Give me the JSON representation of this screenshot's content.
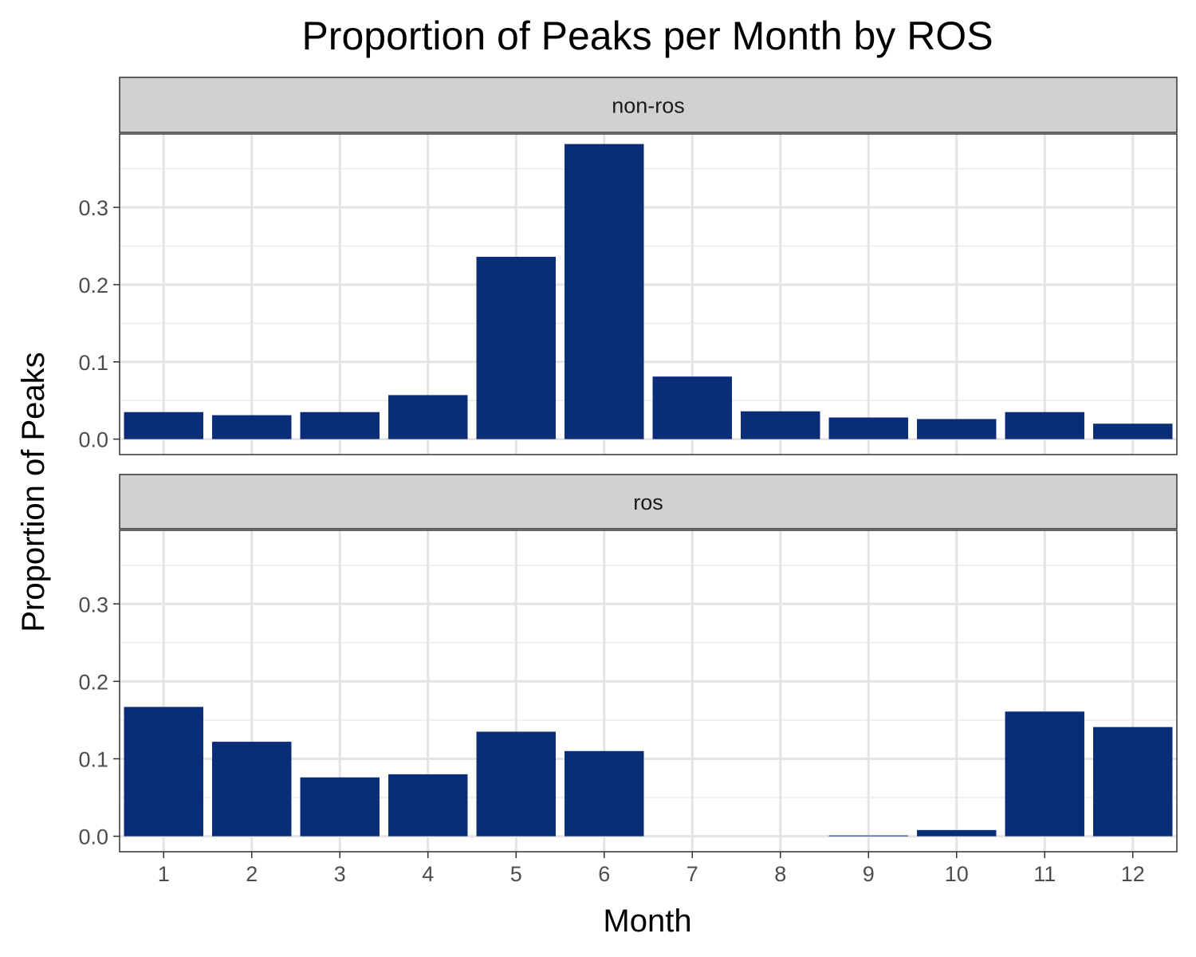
{
  "chart_data": {
    "type": "bar",
    "title": "Proportion of Peaks per Month by ROS",
    "xlabel": "Month",
    "ylabel": "Proportion of Peaks",
    "categories": [
      "1",
      "2",
      "3",
      "4",
      "5",
      "6",
      "7",
      "8",
      "9",
      "10",
      "11",
      "12"
    ],
    "ylim": [
      -0.02,
      0.395
    ],
    "yticks": [
      0.0,
      0.1,
      0.2,
      0.3
    ],
    "ytick_labels": [
      "0.0",
      "0.1",
      "0.2",
      "0.3"
    ],
    "grid": true,
    "legend": "none",
    "bar_color": "#0a2d78",
    "panels": [
      {
        "name": "non-ros",
        "values": [
          0.035,
          0.031,
          0.035,
          0.057,
          0.236,
          0.382,
          0.081,
          0.036,
          0.028,
          0.026,
          0.035,
          0.02
        ]
      },
      {
        "name": "ros",
        "values": [
          0.167,
          0.122,
          0.076,
          0.08,
          0.135,
          0.11,
          0.0,
          0.0,
          0.001,
          0.008,
          0.161,
          0.141
        ]
      }
    ]
  }
}
